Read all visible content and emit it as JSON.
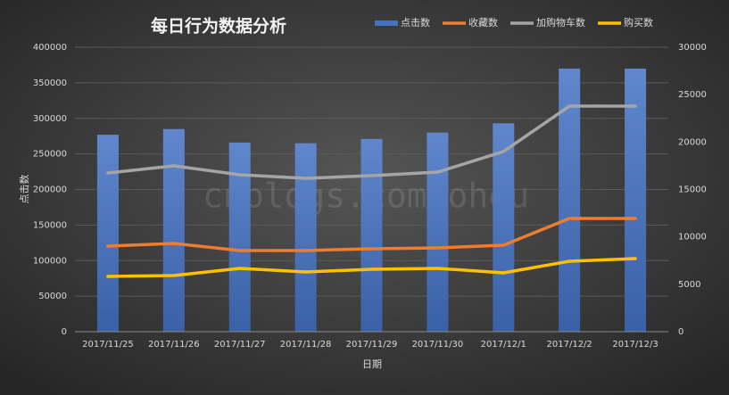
{
  "chart_data": {
    "type": "bar-line",
    "title": "每日行为数据分析",
    "x_label": "日期",
    "y_label": "点击数",
    "watermark": "cnblogs.com/ohou",
    "categories": [
      "2017/11/25",
      "2017/11/26",
      "2017/11/27",
      "2017/11/28",
      "2017/11/29",
      "2017/11/30",
      "2017/12/1",
      "2017/12/2",
      "2017/12/3"
    ],
    "series": [
      {
        "name": "点击数",
        "type": "bar",
        "color": "#4472c4",
        "values": [
          277000,
          285000,
          266000,
          265000,
          271000,
          280000,
          293000,
          370000,
          370000
        ]
      },
      {
        "name": "收藏数",
        "type": "line",
        "axis": "y2",
        "color": "#ed7d31",
        "values": [
          9030,
          9310,
          8560,
          8560,
          8750,
          8840,
          9120,
          11940,
          11940
        ]
      },
      {
        "name": "加购物车数",
        "type": "line",
        "axis": "y2",
        "color": "#a5a5a5",
        "values": [
          16740,
          17490,
          16550,
          16180,
          16460,
          16830,
          19000,
          23790,
          23790
        ]
      },
      {
        "name": "购买数",
        "type": "line",
        "axis": "y2",
        "color": "#ffc000",
        "values": [
          5830,
          5920,
          6680,
          6300,
          6580,
          6680,
          6210,
          7430,
          7710
        ]
      }
    ],
    "ylim": [
      0,
      400000
    ],
    "yticks": [
      0,
      50000,
      100000,
      150000,
      200000,
      250000,
      300000,
      350000,
      400000
    ],
    "y2lim": [
      0,
      30000
    ],
    "y2ticks": [
      0,
      5000,
      10000,
      15000,
      20000,
      25000,
      30000
    ],
    "grid": true,
    "legend": "top-right"
  }
}
